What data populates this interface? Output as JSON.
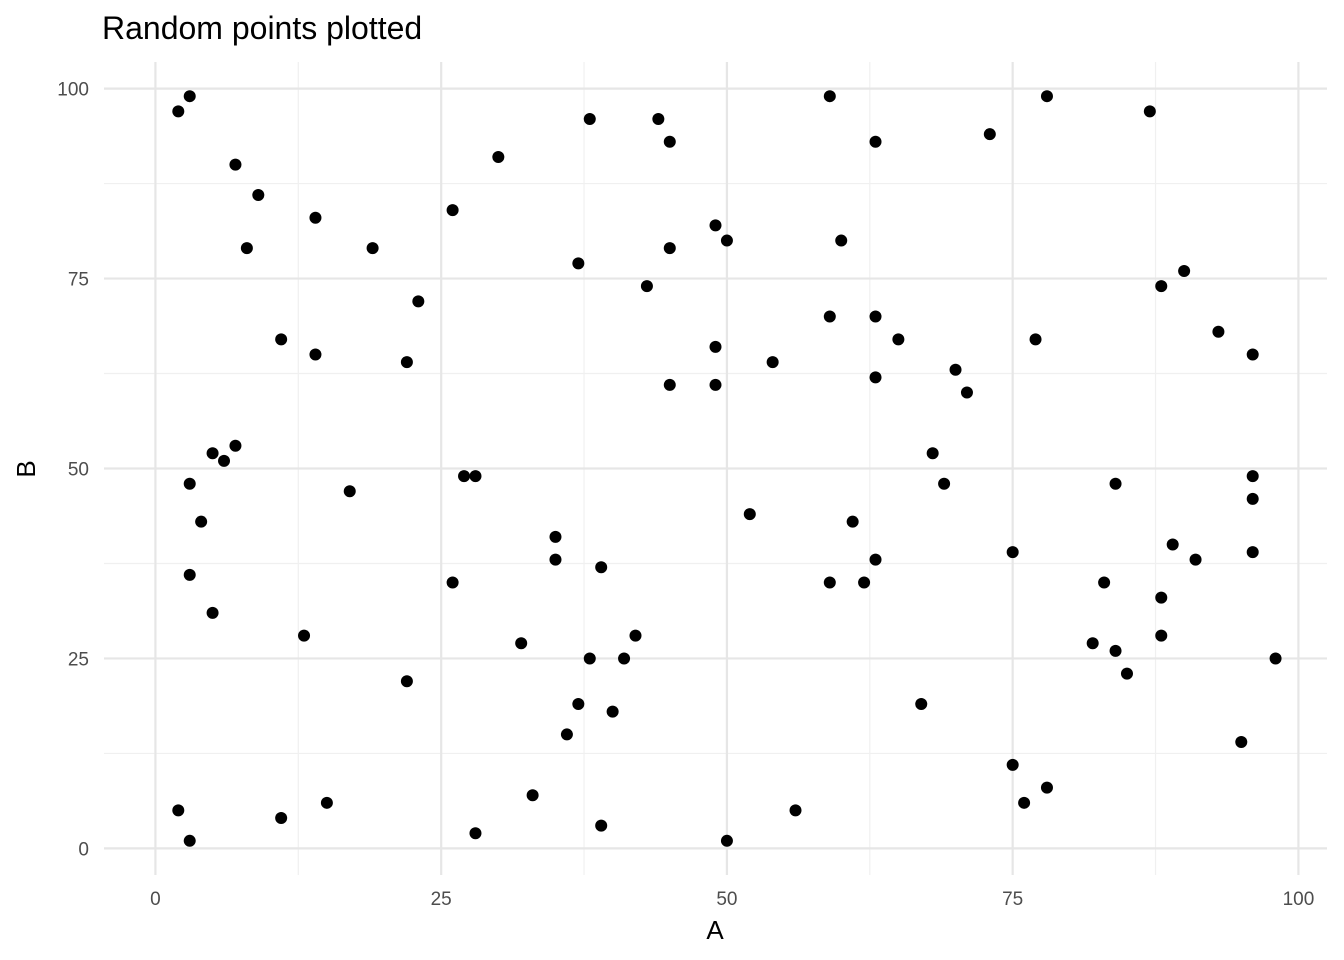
{
  "chart_data": {
    "type": "scatter",
    "title": "Random points plotted",
    "xlabel": "A",
    "ylabel": "B",
    "xlim": [
      -4.5,
      102.5
    ],
    "ylim": [
      -3.5,
      103.5
    ],
    "x_ticks": [
      0,
      25,
      50,
      75,
      100
    ],
    "y_ticks": [
      0,
      25,
      50,
      75,
      100
    ],
    "x_tick_labels": [
      "0",
      "25",
      "50",
      "75",
      "100"
    ],
    "y_tick_labels": [
      "0",
      "25",
      "50",
      "75",
      "100"
    ],
    "x_minor": [
      12.5,
      37.5,
      62.5,
      87.5
    ],
    "y_minor": [
      12.5,
      37.5,
      62.5,
      87.5
    ],
    "grid": true,
    "legend": "none",
    "point_color": "#000000",
    "points": [
      {
        "x": 2,
        "y": 97
      },
      {
        "x": 3,
        "y": 99
      },
      {
        "x": 7,
        "y": 90
      },
      {
        "x": 9,
        "y": 86
      },
      {
        "x": 14,
        "y": 83
      },
      {
        "x": 8,
        "y": 79
      },
      {
        "x": 19,
        "y": 79
      },
      {
        "x": 23,
        "y": 72
      },
      {
        "x": 11,
        "y": 67
      },
      {
        "x": 14,
        "y": 65
      },
      {
        "x": 22,
        "y": 64
      },
      {
        "x": 26,
        "y": 84
      },
      {
        "x": 30,
        "y": 91
      },
      {
        "x": 38,
        "y": 96
      },
      {
        "x": 44,
        "y": 96
      },
      {
        "x": 45,
        "y": 93
      },
      {
        "x": 37,
        "y": 77
      },
      {
        "x": 43,
        "y": 74
      },
      {
        "x": 45,
        "y": 79
      },
      {
        "x": 49,
        "y": 82
      },
      {
        "x": 50,
        "y": 80
      },
      {
        "x": 49,
        "y": 66
      },
      {
        "x": 45,
        "y": 61
      },
      {
        "x": 49,
        "y": 61
      },
      {
        "x": 54,
        "y": 64
      },
      {
        "x": 59,
        "y": 99
      },
      {
        "x": 63,
        "y": 93
      },
      {
        "x": 73,
        "y": 94
      },
      {
        "x": 78,
        "y": 99
      },
      {
        "x": 87,
        "y": 97
      },
      {
        "x": 60,
        "y": 80
      },
      {
        "x": 59,
        "y": 70
      },
      {
        "x": 63,
        "y": 70
      },
      {
        "x": 65,
        "y": 67
      },
      {
        "x": 63,
        "y": 62
      },
      {
        "x": 70,
        "y": 63
      },
      {
        "x": 71,
        "y": 60
      },
      {
        "x": 77,
        "y": 67
      },
      {
        "x": 90,
        "y": 76
      },
      {
        "x": 88,
        "y": 74
      },
      {
        "x": 93,
        "y": 68
      },
      {
        "x": 96,
        "y": 65
      },
      {
        "x": 5,
        "y": 52
      },
      {
        "x": 6,
        "y": 51
      },
      {
        "x": 7,
        "y": 53
      },
      {
        "x": 3,
        "y": 48
      },
      {
        "x": 4,
        "y": 43
      },
      {
        "x": 3,
        "y": 36
      },
      {
        "x": 5,
        "y": 31
      },
      {
        "x": 17,
        "y": 47
      },
      {
        "x": 27,
        "y": 49
      },
      {
        "x": 28,
        "y": 49
      },
      {
        "x": 13,
        "y": 28
      },
      {
        "x": 22,
        "y": 22
      },
      {
        "x": 26,
        "y": 35
      },
      {
        "x": 35,
        "y": 41
      },
      {
        "x": 35,
        "y": 38
      },
      {
        "x": 39,
        "y": 37
      },
      {
        "x": 32,
        "y": 27
      },
      {
        "x": 38,
        "y": 25
      },
      {
        "x": 41,
        "y": 25
      },
      {
        "x": 42,
        "y": 28
      },
      {
        "x": 37,
        "y": 19
      },
      {
        "x": 40,
        "y": 18
      },
      {
        "x": 36,
        "y": 15
      },
      {
        "x": 52,
        "y": 44
      },
      {
        "x": 59,
        "y": 35
      },
      {
        "x": 61,
        "y": 43
      },
      {
        "x": 62,
        "y": 35
      },
      {
        "x": 63,
        "y": 38
      },
      {
        "x": 68,
        "y": 52
      },
      {
        "x": 69,
        "y": 48
      },
      {
        "x": 75,
        "y": 39
      },
      {
        "x": 67,
        "y": 19
      },
      {
        "x": 84,
        "y": 48
      },
      {
        "x": 83,
        "y": 35
      },
      {
        "x": 89,
        "y": 40
      },
      {
        "x": 91,
        "y": 38
      },
      {
        "x": 88,
        "y": 33
      },
      {
        "x": 88,
        "y": 28
      },
      {
        "x": 82,
        "y": 27
      },
      {
        "x": 84,
        "y": 26
      },
      {
        "x": 85,
        "y": 23
      },
      {
        "x": 96,
        "y": 49
      },
      {
        "x": 96,
        "y": 46
      },
      {
        "x": 96,
        "y": 39
      },
      {
        "x": 98,
        "y": 25
      },
      {
        "x": 95,
        "y": 14
      },
      {
        "x": 75,
        "y": 11
      },
      {
        "x": 76,
        "y": 6
      },
      {
        "x": 78,
        "y": 8
      },
      {
        "x": 2,
        "y": 5
      },
      {
        "x": 3,
        "y": 1
      },
      {
        "x": 11,
        "y": 4
      },
      {
        "x": 15,
        "y": 6
      },
      {
        "x": 28,
        "y": 2
      },
      {
        "x": 33,
        "y": 7
      },
      {
        "x": 39,
        "y": 3
      },
      {
        "x": 50,
        "y": 1
      },
      {
        "x": 56,
        "y": 5
      }
    ]
  }
}
